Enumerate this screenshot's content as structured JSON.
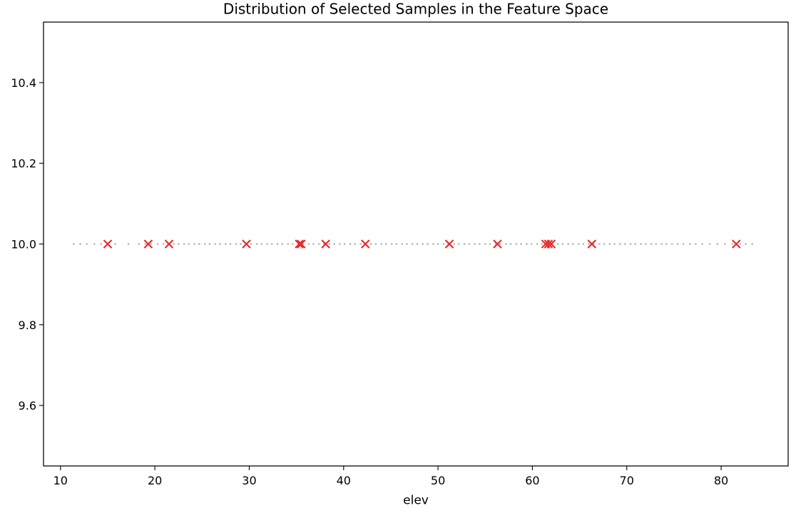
{
  "chart_data": {
    "type": "scatter",
    "title": "Distribution of Selected Samples in the Feature Space",
    "xlabel": "elev",
    "ylabel": "",
    "xlim": [
      8.2,
      87.1
    ],
    "ylim": [
      9.45,
      10.55
    ],
    "xticks": [
      10,
      20,
      30,
      40,
      50,
      60,
      70,
      80
    ],
    "xtick_labels": [
      "10",
      "20",
      "30",
      "40",
      "50",
      "60",
      "70",
      "80"
    ],
    "yticks": [
      9.6,
      9.8,
      10.0,
      10.2,
      10.4
    ],
    "ytick_labels": [
      "9.6",
      "9.8",
      "10.0",
      "10.2",
      "10.4"
    ],
    "grid": false,
    "legend": "none",
    "series": [
      {
        "marker": "point",
        "color": "#808080",
        "alpha": 0.55,
        "y": 10.0,
        "x": [
          11.4,
          12.1,
          12.8,
          13.6,
          14.3,
          15.0,
          15.8,
          17.2,
          18.3,
          19.0,
          19.6,
          20.3,
          20.9,
          21.4,
          22.0,
          22.5,
          23.1,
          23.6,
          24.2,
          24.7,
          25.3,
          25.8,
          26.4,
          26.9,
          27.5,
          28.0,
          28.6,
          29.1,
          29.7,
          30.2,
          30.8,
          31.3,
          31.9,
          32.4,
          33.0,
          33.5,
          34.1,
          34.6,
          35.2,
          35.7,
          36.3,
          36.8,
          37.4,
          37.9,
          38.5,
          39.0,
          39.6,
          40.1,
          40.7,
          41.2,
          41.8,
          42.3,
          42.9,
          43.4,
          44.0,
          44.5,
          45.1,
          45.6,
          46.2,
          46.7,
          47.3,
          47.8,
          48.4,
          48.9,
          49.5,
          50.0,
          50.6,
          51.1,
          51.7,
          52.2,
          52.8,
          53.3,
          53.9,
          54.4,
          55.0,
          55.5,
          56.1,
          56.6,
          57.2,
          57.7,
          58.3,
          58.8,
          59.4,
          59.9,
          60.5,
          61.0,
          61.6,
          62.1,
          62.7,
          63.2,
          63.8,
          64.3,
          64.9,
          65.4,
          66.0,
          66.5,
          67.1,
          67.6,
          68.2,
          68.7,
          69.3,
          69.8,
          70.4,
          70.9,
          71.5,
          72.0,
          72.6,
          73.1,
          73.7,
          74.2,
          74.8,
          75.4,
          76.0,
          76.7,
          77.3,
          78.0,
          78.8,
          79.6,
          80.4,
          81.2,
          82.0,
          82.6,
          83.3
        ]
      },
      {
        "marker": "x",
        "color": "#e8282a",
        "y": 10.0,
        "x": [
          15.0,
          19.3,
          21.5,
          29.7,
          35.3,
          35.5,
          38.1,
          42.3,
          51.2,
          56.3,
          61.4,
          61.7,
          62.0,
          66.3,
          81.6
        ]
      }
    ]
  }
}
